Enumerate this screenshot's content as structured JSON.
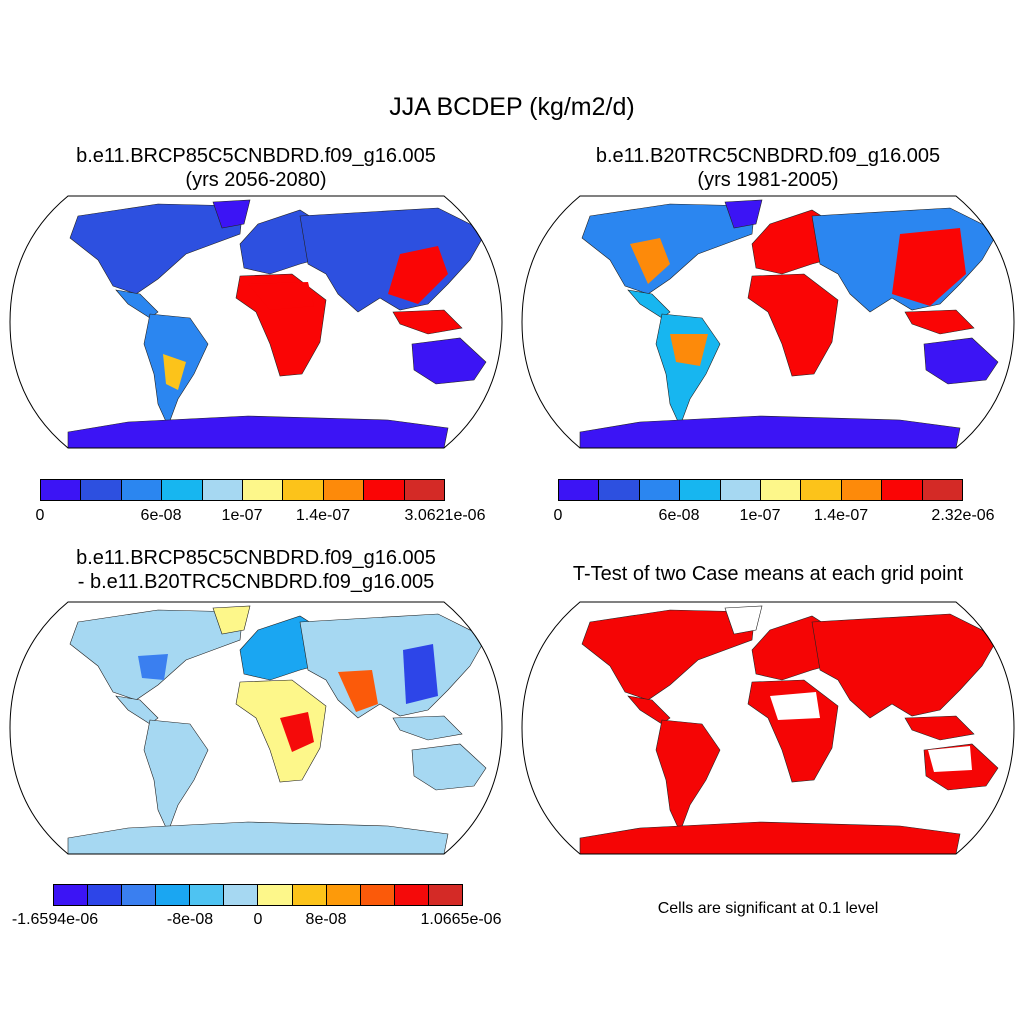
{
  "figure": {
    "title": "JJA BCDEP (kg/m2/d)"
  },
  "panels": {
    "top_left": {
      "title_line1": "b.e11.BRCP85C5CNBDRD.f09_g16.005",
      "title_line2": "(yrs 2056-2080)",
      "colorbar": {
        "colors": [
          "#3c14f5",
          "#2d50e0",
          "#2b86f0",
          "#17b6f0",
          "#a6d8f2",
          "#fdf78a",
          "#fcc31a",
          "#fd8a0a",
          "#fa0505",
          "#d42a26"
        ],
        "labels": [
          "0",
          "6e-08",
          "1e-07",
          "1.4e-07",
          "3.0621e-06"
        ]
      }
    },
    "top_right": {
      "title_line1": "b.e11.B20TRC5CNBDRD.f09_g16.005",
      "title_line2": "(yrs 1981-2005)",
      "colorbar": {
        "colors": [
          "#3c14f5",
          "#2d50e0",
          "#2b86f0",
          "#17b6f0",
          "#a6d8f2",
          "#fdf78a",
          "#fcc31a",
          "#fd8a0a",
          "#fa0505",
          "#d42a26"
        ],
        "labels": [
          "0",
          "6e-08",
          "1e-07",
          "1.4e-07",
          "2.32e-06"
        ]
      }
    },
    "bottom_left": {
      "title_line1": "b.e11.BRCP85C5CNBDRD.f09_g16.005",
      "title_line2": "- b.e11.B20TRC5CNBDRD.f09_g16.005",
      "colorbar": {
        "colors": [
          "#3c14f5",
          "#2d45e8",
          "#3a7ff0",
          "#1aa6f2",
          "#4ec3f2",
          "#a6d8f2",
          "#fdf78a",
          "#fcc31a",
          "#fd9a0a",
          "#fb5a0a",
          "#f50a0a",
          "#d42a26"
        ],
        "labels": [
          "-1.6594e-06",
          "-8e-08",
          "0",
          "8e-08",
          "1.0665e-06"
        ]
      }
    },
    "bottom_right": {
      "title": "T-Test of two Case means at each grid point",
      "note": "Cells are significant at 0.1 level",
      "significant_color": "#f50505"
    }
  }
}
